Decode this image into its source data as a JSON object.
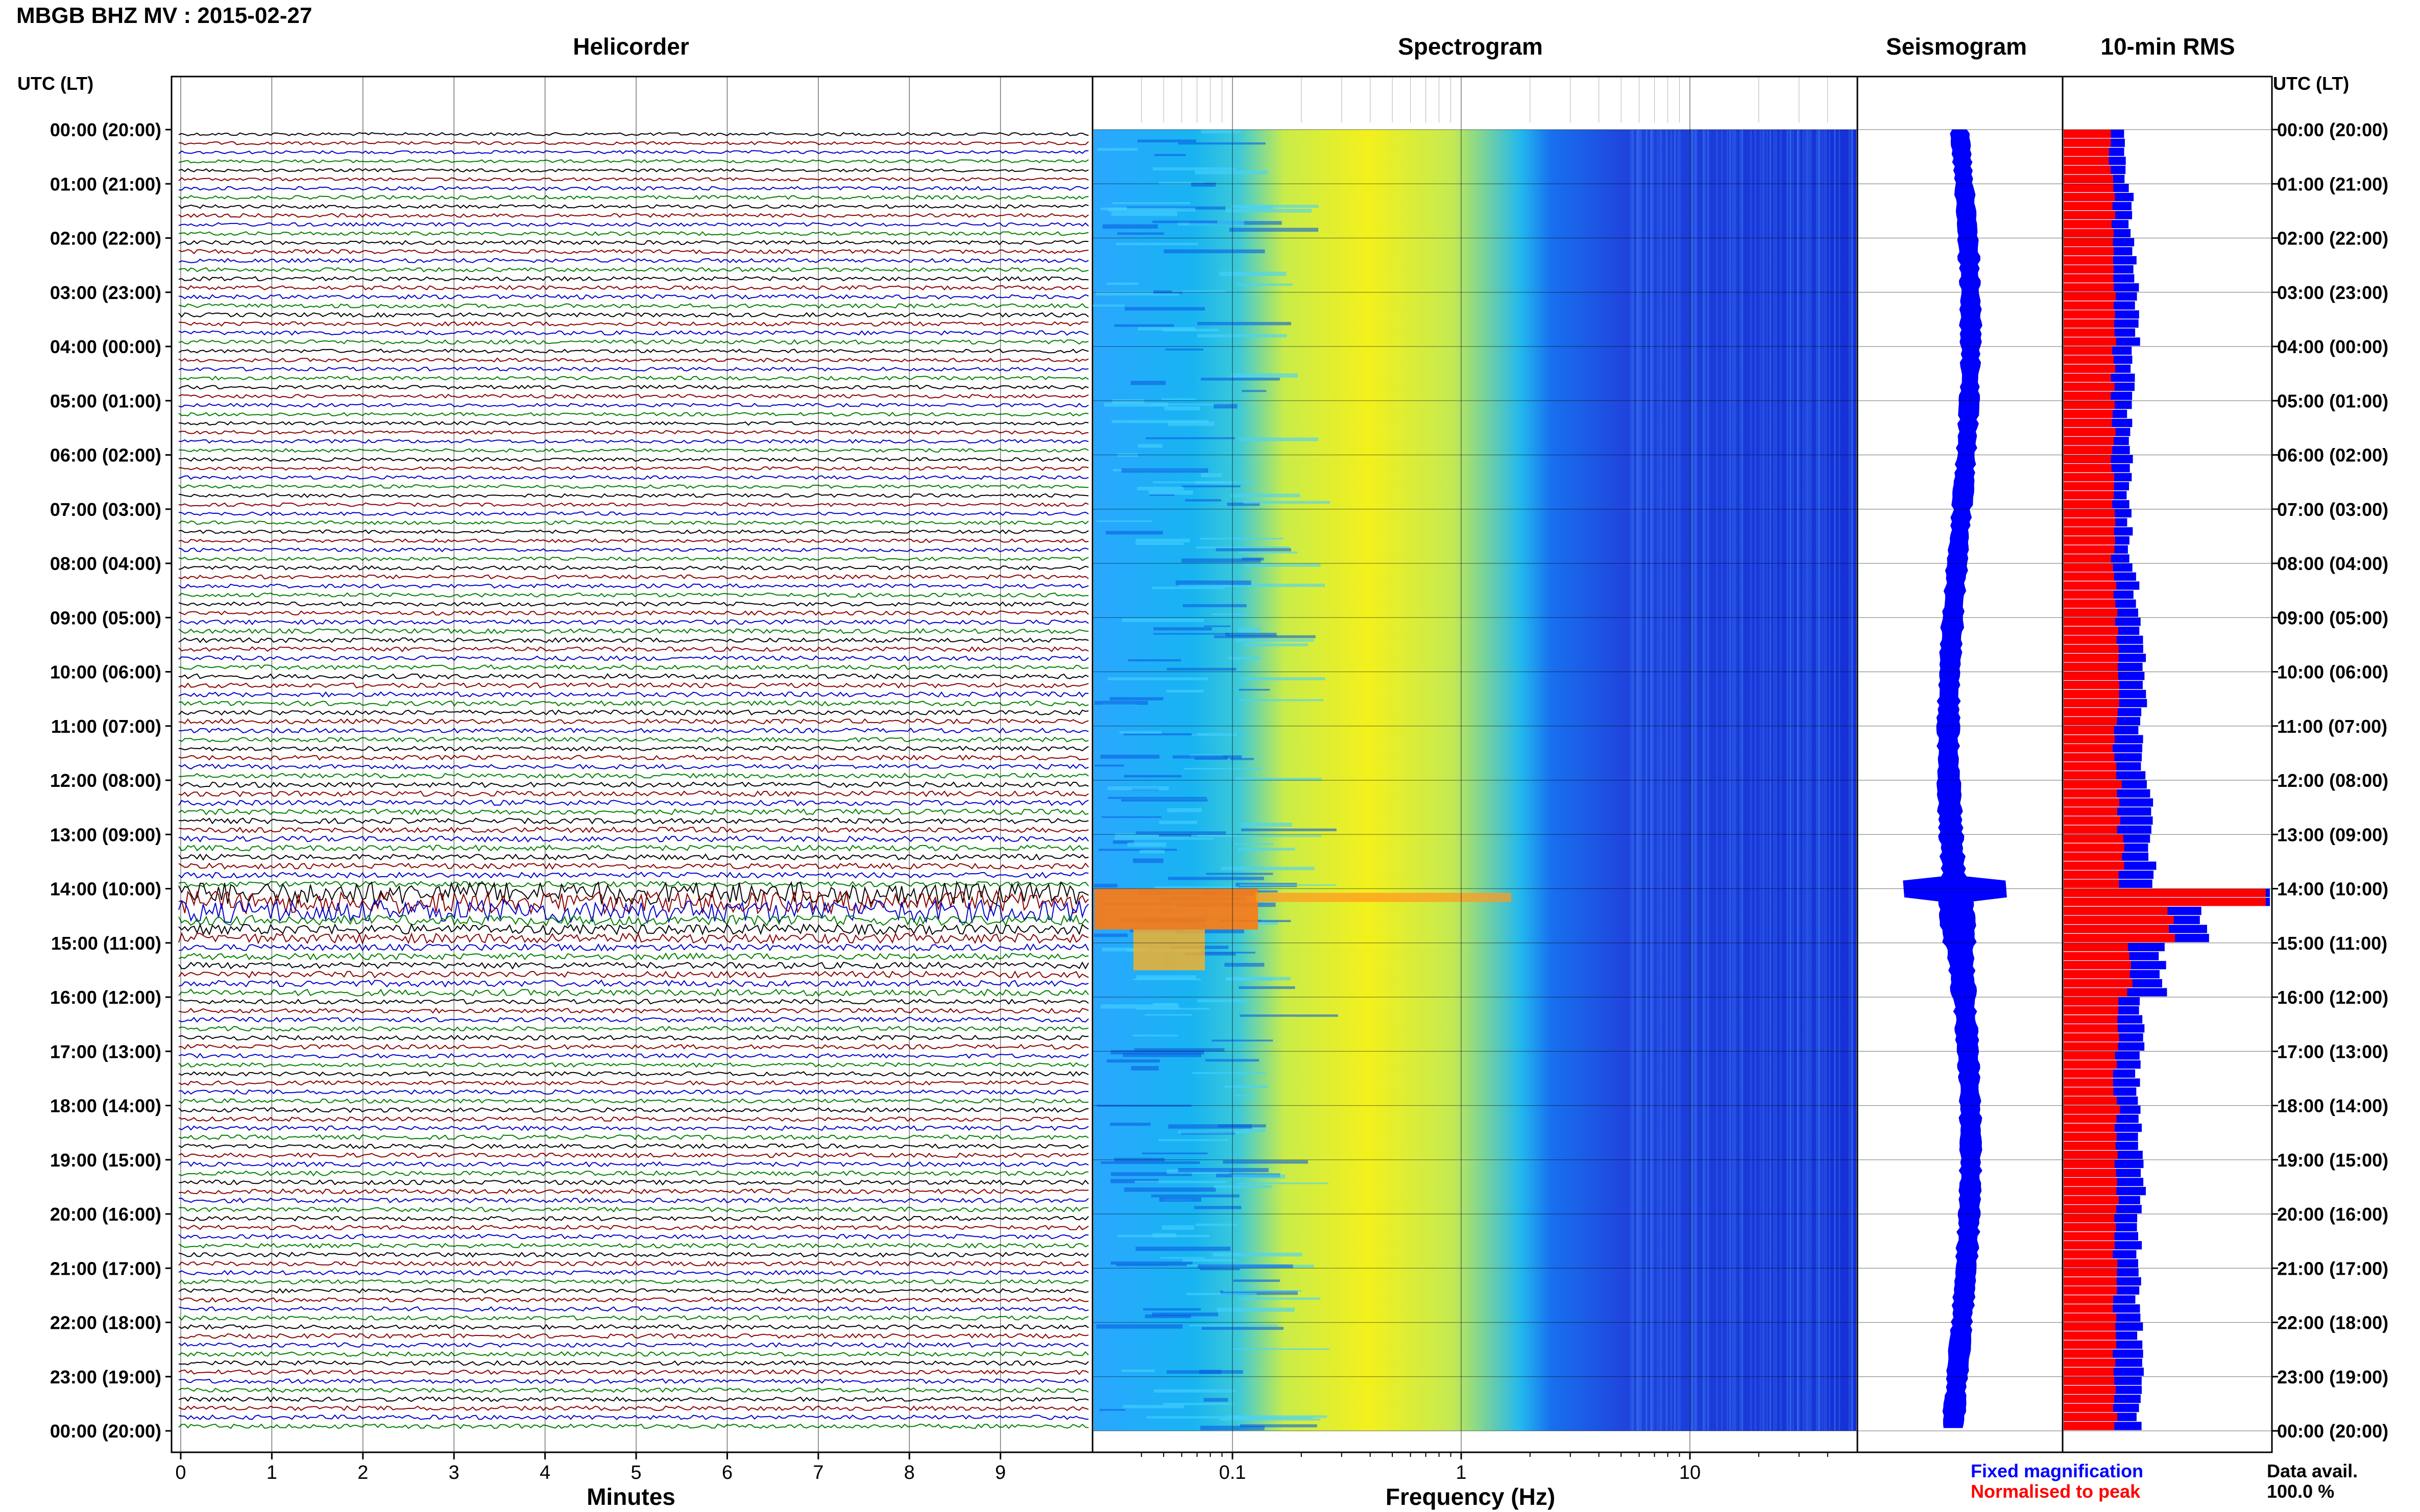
{
  "title": "MBGB BHZ MV : 2015-02-27",
  "panels": {
    "helicorder": "Helicorder",
    "spectrogram": "Spectrogram",
    "seismogram": "Seismogram",
    "rms": "10-min RMS"
  },
  "utc_header": "UTC (LT)",
  "time_labels": [
    "00:00 (20:00)",
    "01:00 (21:00)",
    "02:00 (22:00)",
    "03:00 (23:00)",
    "04:00 (00:00)",
    "05:00 (01:00)",
    "06:00 (02:00)",
    "07:00 (03:00)",
    "08:00 (04:00)",
    "09:00 (05:00)",
    "10:00 (06:00)",
    "11:00 (07:00)",
    "12:00 (08:00)",
    "13:00 (09:00)",
    "14:00 (10:00)",
    "15:00 (11:00)",
    "16:00 (12:00)",
    "17:00 (13:00)",
    "18:00 (14:00)",
    "19:00 (15:00)",
    "20:00 (16:00)",
    "21:00 (17:00)",
    "22:00 (18:00)",
    "23:00 (19:00)",
    "00:00 (20:00)"
  ],
  "helicorder_axis": {
    "label": "Minutes",
    "ticks": [
      "0",
      "1",
      "2",
      "3",
      "4",
      "5",
      "6",
      "7",
      "8",
      "9"
    ]
  },
  "spectrogram_axis": {
    "label": "Frequency (Hz)",
    "ticks": [
      "0.1",
      "1",
      "10"
    ],
    "scale": "log"
  },
  "legend": {
    "fixed": "Fixed magnification",
    "normalised": "Normalised to peak"
  },
  "data_availability": {
    "label": "Data avail.",
    "value": "100.0 %"
  },
  "colors": {
    "trace_cycle": [
      "#000000",
      "#8b0000",
      "#0000cd",
      "#008000"
    ],
    "fixed_magnification": "#0000ff",
    "normalised_to_peak": "#ff0000"
  },
  "chart_data": {
    "type": "bar",
    "title": "10-min RMS",
    "ylabel": "UTC (LT)",
    "orientation": "horizontal",
    "interval_minutes": 10,
    "bins": 144,
    "hourly_fixed_magnification": [
      0.3,
      0.33,
      0.35,
      0.36,
      0.33,
      0.32,
      0.32,
      0.32,
      0.35,
      0.38,
      0.39,
      0.38,
      0.42,
      0.43,
      0.68,
      0.48,
      0.38,
      0.36,
      0.37,
      0.38,
      0.37,
      0.36,
      0.37,
      0.37
    ],
    "hourly_normalised_to_peak": [
      0.23,
      0.24,
      0.25,
      0.25,
      0.24,
      0.24,
      0.24,
      0.24,
      0.25,
      0.26,
      0.26,
      0.25,
      0.27,
      0.28,
      0.52,
      0.32,
      0.26,
      0.25,
      0.26,
      0.26,
      0.25,
      0.25,
      0.25,
      0.25
    ],
    "peak_hour_utc": "14:00"
  }
}
